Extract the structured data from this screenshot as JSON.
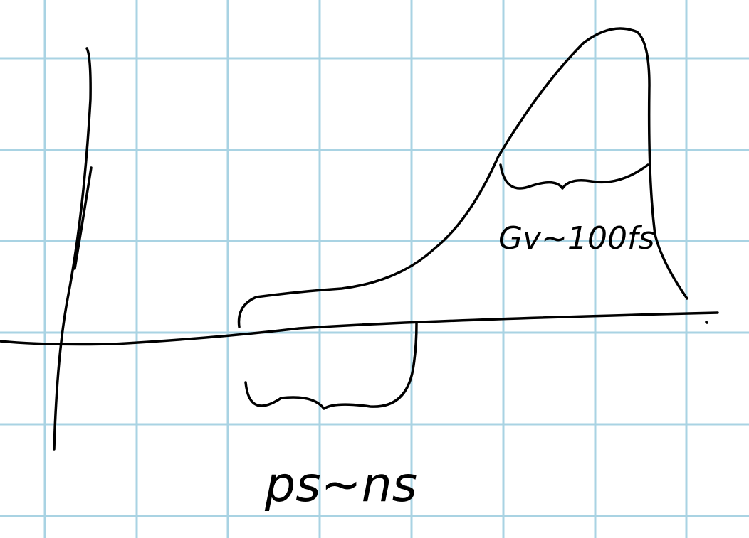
{
  "labels": {
    "lower": "ps~ns",
    "upper": "Gv~100fs"
  }
}
